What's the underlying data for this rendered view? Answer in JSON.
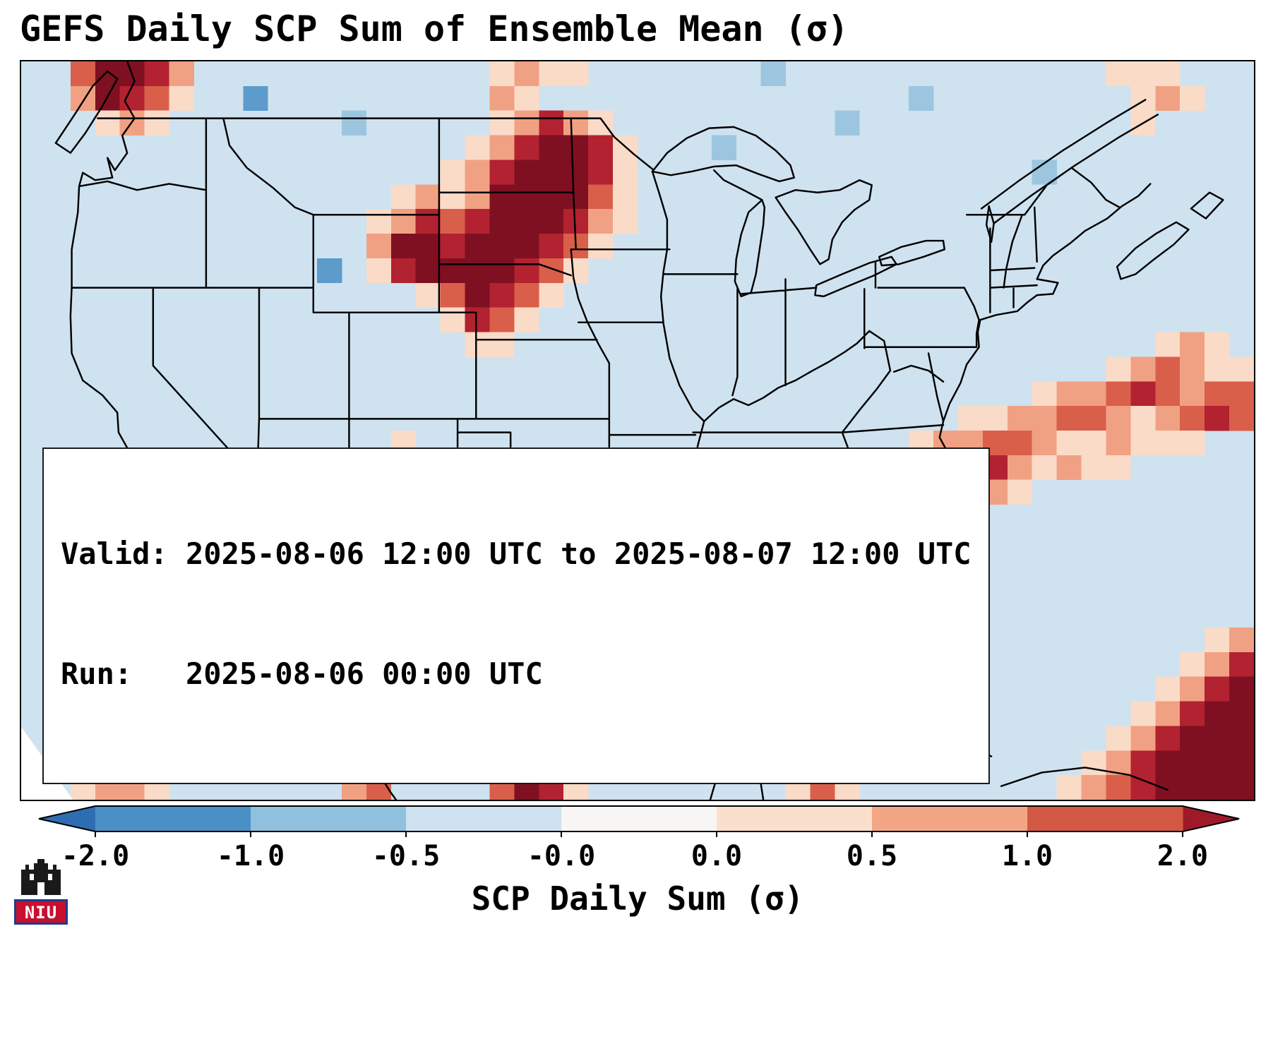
{
  "title": "GEFS Daily SCP Sum of Ensemble Mean (σ)",
  "info_box": {
    "valid_line": "Valid: 2025-08-06 12:00 UTC to 2025-08-07 12:00 UTC",
    "run_line": "Run:   2025-08-06 00:00 UTC"
  },
  "colorbar": {
    "label": "SCP Daily Sum (σ)",
    "ticks": [
      "-2.0",
      "-1.0",
      "-0.5",
      "-0.0",
      "0.0",
      "0.5",
      "1.0",
      "2.0"
    ],
    "segment_colors": [
      "#4a90c6",
      "#8fc0dd",
      "#cde1ee",
      "#f7f6f4",
      "#fbdfcd",
      "#f3a683",
      "#d35844"
    ],
    "under_color": "#2f6db3",
    "over_color": "#9e1a28"
  },
  "logo": {
    "text": "NIU",
    "banner_color": "#c8102e",
    "banner_border_color": "#1d3c8f",
    "castle_color": "#1a1a1a"
  },
  "chart_data": {
    "type": "heatmap",
    "title": "GEFS Daily SCP Sum of Ensemble Mean (σ)",
    "units": "σ",
    "colorbar_label": "SCP Daily Sum (σ)",
    "colorbar_ticks": [
      -2.0,
      -1.0,
      -0.5,
      -0.0,
      0.0,
      0.5,
      1.0,
      2.0
    ],
    "grid_cols": 50,
    "grid_rows": 30,
    "value_levels": {
      ".": -0.3,
      "b": -0.7,
      "B": -1.2,
      "q": 0.3,
      "p": 0.7,
      "o": 1.2,
      "r": 1.8,
      "D": 2.5
    },
    "level_colors": {
      ".": "#cfe2ef",
      "b": "#9cc6e0",
      "B": "#5e9bcd",
      "q": "#fadbc8",
      "p": "#f1a183",
      "o": "#d95f4b",
      "r": "#b22230",
      "D": "#7f1021"
    },
    "grid": [
      "..oDDrp............qpqq.......b.............qqq...",
      "..pDroq..B.........pq...............b........qpq..",
      "...qpq.......b.....qprpq.........b...........q....",
      "..................qprDDrq...b.....................",
      ".................qprDDDrq................b........",
      "...............qpqpDDDDoq.........................",
      "..............qprorDDDrpq.........................",
      "..............pDDrDDDroq..........................",
      "............B.qrDDDDroq...........................",
      "................qoDroq............................",
      ".................qroq.............................",
      "..................qq..........................qpq.",
      "............................................qpopqq",
      ".........................................qpporopoo",
      "......................................qqppoopqporo",
      "...............q....................qppoopqqpqqq..",
      "...............qq.................qqpporpqpqq.....",
      ".................................qppopqpq.........",
      "....................qqpq........prDrpqq...........",
      "...................qporpq.......rDDoq.............",
      "..................qprDDrpq......prpq..............",
      ".....qqpq.qp.....qprDDroq........q................",
      "....prrpq.prp...qpDDropq....b.....................",
      "...pDDrpq.qro...prroq.............q.............qp",
      "..oDDDDrp..or...prq............................qpr",
      ".prDDDDDoq.ro...qo............................qprD",
      ".oDDDDDrp...rp..........b....................qprDD",
      ".prDDDroq...or.................qp...........qprDDD",
      ".qprrop......op....pro.........prp.........qprDDDD",
      "..qppq.......po....oDrq........qoq........qporDDDD"
    ]
  }
}
